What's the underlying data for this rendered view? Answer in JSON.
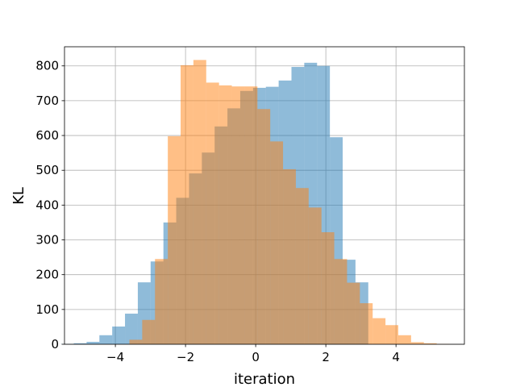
{
  "chart_data": {
    "type": "bar",
    "title": "",
    "xlabel": "iteration",
    "ylabel": "KL",
    "xlim": [
      -5.45,
      5.95
    ],
    "ylim": [
      0,
      855
    ],
    "grid": true,
    "xticks": [
      -4,
      -2,
      0,
      2,
      4
    ],
    "xtick_labels": [
      "−4",
      "−2",
      "0",
      "2",
      "4"
    ],
    "yticks": [
      0,
      100,
      200,
      300,
      400,
      500,
      600,
      700,
      800
    ],
    "ytick_labels": [
      "0",
      "100",
      "200",
      "300",
      "400",
      "500",
      "600",
      "700",
      "800"
    ],
    "series": [
      {
        "color": "#1f77b4",
        "opacity": 0.5,
        "bin_edges": [
          -5.55,
          -5.185,
          -4.82,
          -4.455,
          -4.09,
          -3.725,
          -3.36,
          -2.995,
          -2.63,
          -2.265,
          -1.9,
          -1.535,
          -1.17,
          -0.805,
          -0.44,
          -0.075,
          0.29,
          0.655,
          1.02,
          1.385,
          1.75,
          2.115,
          2.48,
          2.845,
          3.21,
          3.575
        ],
        "counts": [
          1,
          3,
          7,
          26,
          51,
          88,
          178,
          238,
          350,
          421,
          491,
          551,
          626,
          678,
          728,
          737,
          740,
          758,
          797,
          809,
          800,
          595,
          243,
          178,
          0
        ]
      },
      {
        "color": "#ff7f0e",
        "opacity": 0.5,
        "bin_edges": [
          -3.6,
          -3.235,
          -2.87,
          -2.505,
          -2.14,
          -1.775,
          -1.41,
          -1.045,
          -0.68,
          -0.315,
          0.05,
          0.415,
          0.78,
          1.145,
          1.51,
          1.875,
          2.24,
          2.605,
          2.97,
          3.335,
          3.7,
          4.065,
          4.43,
          4.795,
          5.16,
          5.525
        ],
        "counts": [
          13,
          70,
          245,
          598,
          802,
          817,
          752,
          744,
          741,
          741,
          676,
          583,
          503,
          449,
          393,
          322,
          245,
          177,
          118,
          75,
          55,
          26,
          6,
          3,
          1
        ]
      }
    ]
  }
}
